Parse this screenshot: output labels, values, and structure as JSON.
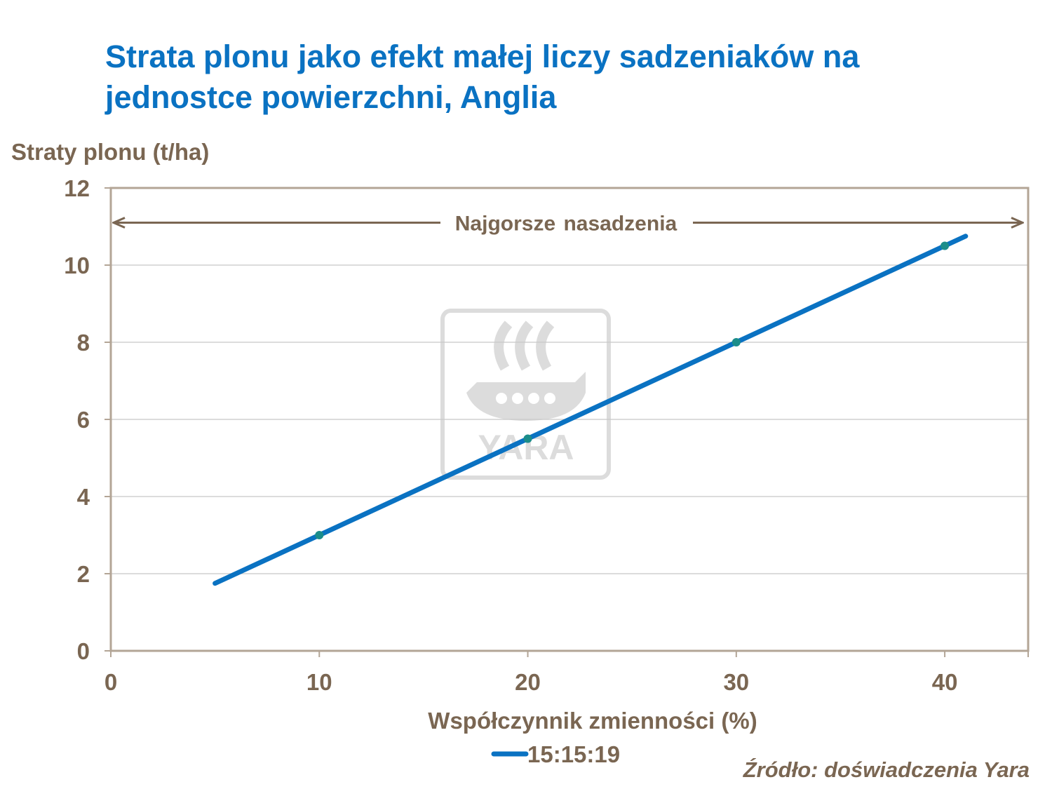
{
  "title": {
    "line1": "Strata plonu jako efekt małej liczy sadzeniaków na",
    "line2": "jednostce powierzchni, Anglia"
  },
  "source": "Źródło: doświadczenia  Yara",
  "watermark": {
    "text": "YARA"
  },
  "colors": {
    "title": "#0a72c2",
    "series": "#0a72c2",
    "marker": "#1b8d8a",
    "axis_text": "#7a6652",
    "frame": "#b3a596",
    "grid": "#c8c8c8",
    "arrow": "#7a6652",
    "watermark": "#d9d9d9"
  },
  "chart_data": {
    "type": "line",
    "title": "Strata plonu jako efekt małej liczy sadzeniaków na jednostce powierzchni, Anglia",
    "xlabel": "Współczynnik zmienności (%)",
    "ylabel": "Straty plonu (t/ha)",
    "xlim": [
      0,
      44
    ],
    "ylim": [
      0,
      12
    ],
    "xticks": [
      "0",
      "10",
      "20",
      "30",
      "40"
    ],
    "yticks": [
      "0",
      "2",
      "4",
      "6",
      "8",
      "10",
      "12"
    ],
    "grid": true,
    "legend": "bottom-left",
    "series": [
      {
        "name": "15:15:19",
        "line": {
          "x": [
            5,
            41
          ],
          "y": [
            1.75,
            10.75
          ]
        },
        "points": {
          "x": [
            10,
            20,
            30,
            40
          ],
          "y": [
            3,
            5.5,
            8,
            10.5
          ]
        }
      }
    ],
    "annotations": [
      {
        "text": "Najgorsze nasadzenia",
        "type": "double-arrow",
        "y": 11.1,
        "x_from": 0,
        "x_to": 44
      }
    ]
  }
}
